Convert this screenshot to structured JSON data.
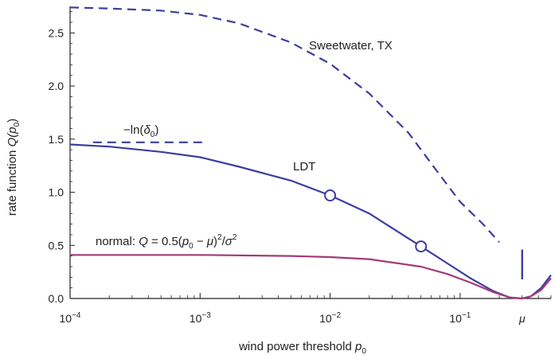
{
  "chart_data": {
    "type": "line",
    "xlabel": "wind power threshold",
    "xlabel_sym": "p",
    "xlabel_sub": "0",
    "ylabel": "rate function",
    "ylabel_sym": "Q(p",
    "ylabel_sub": "0",
    "ylabel_close": ")",
    "x_scale": "log",
    "xlim": [
      0.0001,
      0.5
    ],
    "ylim": [
      0,
      2.75
    ],
    "x_ticks": [
      {
        "value": 0.0001,
        "base": "10",
        "exp": "−4"
      },
      {
        "value": 0.001,
        "base": "10",
        "exp": "−3"
      },
      {
        "value": 0.01,
        "base": "10",
        "exp": "−2"
      },
      {
        "value": 0.1,
        "base": "10",
        "exp": "−1"
      }
    ],
    "mu_tick": {
      "value": 0.3,
      "label": "μ"
    },
    "y_ticks": [
      "0.0",
      "0.5",
      "1.0",
      "1.5",
      "2.0",
      "2.5"
    ],
    "y_tick_values": [
      0,
      0.5,
      1.0,
      1.5,
      2.0,
      2.5
    ],
    "grid": false,
    "series": [
      {
        "key": "sweetwater",
        "name": "Sweetwater, TX",
        "style": "dashed",
        "color": "#3d3da0",
        "x": [
          0.0001,
          0.0002,
          0.0005,
          0.001,
          0.002,
          0.005,
          0.01,
          0.02,
          0.04,
          0.07,
          0.1,
          0.15,
          0.2
        ],
        "y": [
          2.74,
          2.73,
          2.71,
          2.67,
          2.59,
          2.41,
          2.21,
          1.93,
          1.56,
          1.16,
          0.91,
          0.7,
          0.53
        ]
      },
      {
        "key": "ldt",
        "name": "LDT",
        "style": "solid",
        "color": "#3d3da0",
        "x": [
          0.0001,
          0.0002,
          0.0005,
          0.001,
          0.002,
          0.005,
          0.01,
          0.02,
          0.05,
          0.08,
          0.12,
          0.18,
          0.24,
          0.3,
          0.35,
          0.42,
          0.5
        ],
        "y": [
          1.45,
          1.43,
          1.38,
          1.33,
          1.24,
          1.11,
          0.97,
          0.8,
          0.49,
          0.33,
          0.19,
          0.07,
          0.01,
          0.0,
          0.02,
          0.1,
          0.22
        ]
      },
      {
        "key": "normal",
        "name": "normal: Q = 0.5(p0 − μ)²/σ²",
        "style": "solid",
        "color": "#a33a79",
        "x": [
          0.0001,
          0.001,
          0.005,
          0.01,
          0.02,
          0.05,
          0.08,
          0.12,
          0.18,
          0.24,
          0.3,
          0.35,
          0.42,
          0.5
        ],
        "y": [
          0.41,
          0.41,
          0.4,
          0.39,
          0.37,
          0.3,
          0.23,
          0.15,
          0.06,
          0.01,
          0.0,
          0.02,
          0.08,
          0.19
        ]
      },
      {
        "key": "ln_delta",
        "name": "−ln(δ0)",
        "style": "dashed",
        "color": "#3d3da0",
        "x": [
          0.00015,
          0.00105
        ],
        "y": [
          1.47,
          1.47
        ]
      }
    ],
    "markers": [
      {
        "x": 0.01,
        "y": 0.97
      },
      {
        "x": 0.05,
        "y": 0.49
      }
    ],
    "mu_marker": {
      "x": 0.3,
      "y0": 0.18,
      "y1": 0.46
    },
    "annotations": {
      "sweetwater": "Sweetwater, TX",
      "ldt": "LDT",
      "ln_pre": "−ln(",
      "ln_sym": "δ",
      "ln_sub": "0",
      "ln_post": ")",
      "normal_pre": "normal: ",
      "normal_q": "Q",
      "normal_eq": " = 0.5(",
      "normal_p": "p",
      "normal_psub": "0",
      "normal_minus": " − ",
      "normal_mu": "μ",
      "normal_close": ")",
      "normal_sup": "2",
      "normal_slash": "/",
      "normal_sigma": "σ",
      "normal_sup2": "2"
    }
  }
}
